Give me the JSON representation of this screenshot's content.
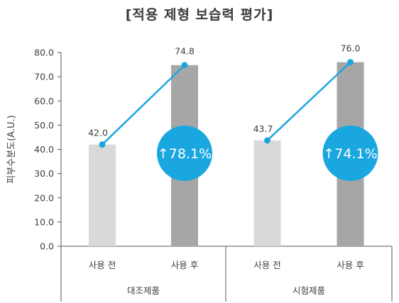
{
  "chart_data": {
    "type": "bar",
    "title": "[적용 제형 보습력 평가]",
    "ylabel": "피부수분도(A.U.)",
    "ylim": [
      0,
      80
    ],
    "yticks": [
      "0.0",
      "10.0",
      "20.0",
      "30.0",
      "40.0",
      "50.0",
      "60.0",
      "70.0",
      "80.0"
    ],
    "groups": [
      {
        "name": "대조제품",
        "categories": [
          "사용 전",
          "사용 후"
        ],
        "values": [
          42.0,
          74.8
        ],
        "value_labels": [
          "42.0",
          "74.8"
        ],
        "increase_label": "↑78.1%"
      },
      {
        "name": "시험제품",
        "categories": [
          "사용 전",
          "사용 후"
        ],
        "values": [
          43.7,
          76.0
        ],
        "value_labels": [
          "43.7",
          "76.0"
        ],
        "increase_label": "↑74.1%"
      }
    ],
    "grid": false,
    "legend": "none",
    "colors": {
      "before_bar": "#d9d9d9",
      "after_bar": "#a6a6a6",
      "line": "#1aa7e0",
      "badge": "#1aa7e0",
      "axis": "#555555",
      "text": "#404040"
    }
  }
}
